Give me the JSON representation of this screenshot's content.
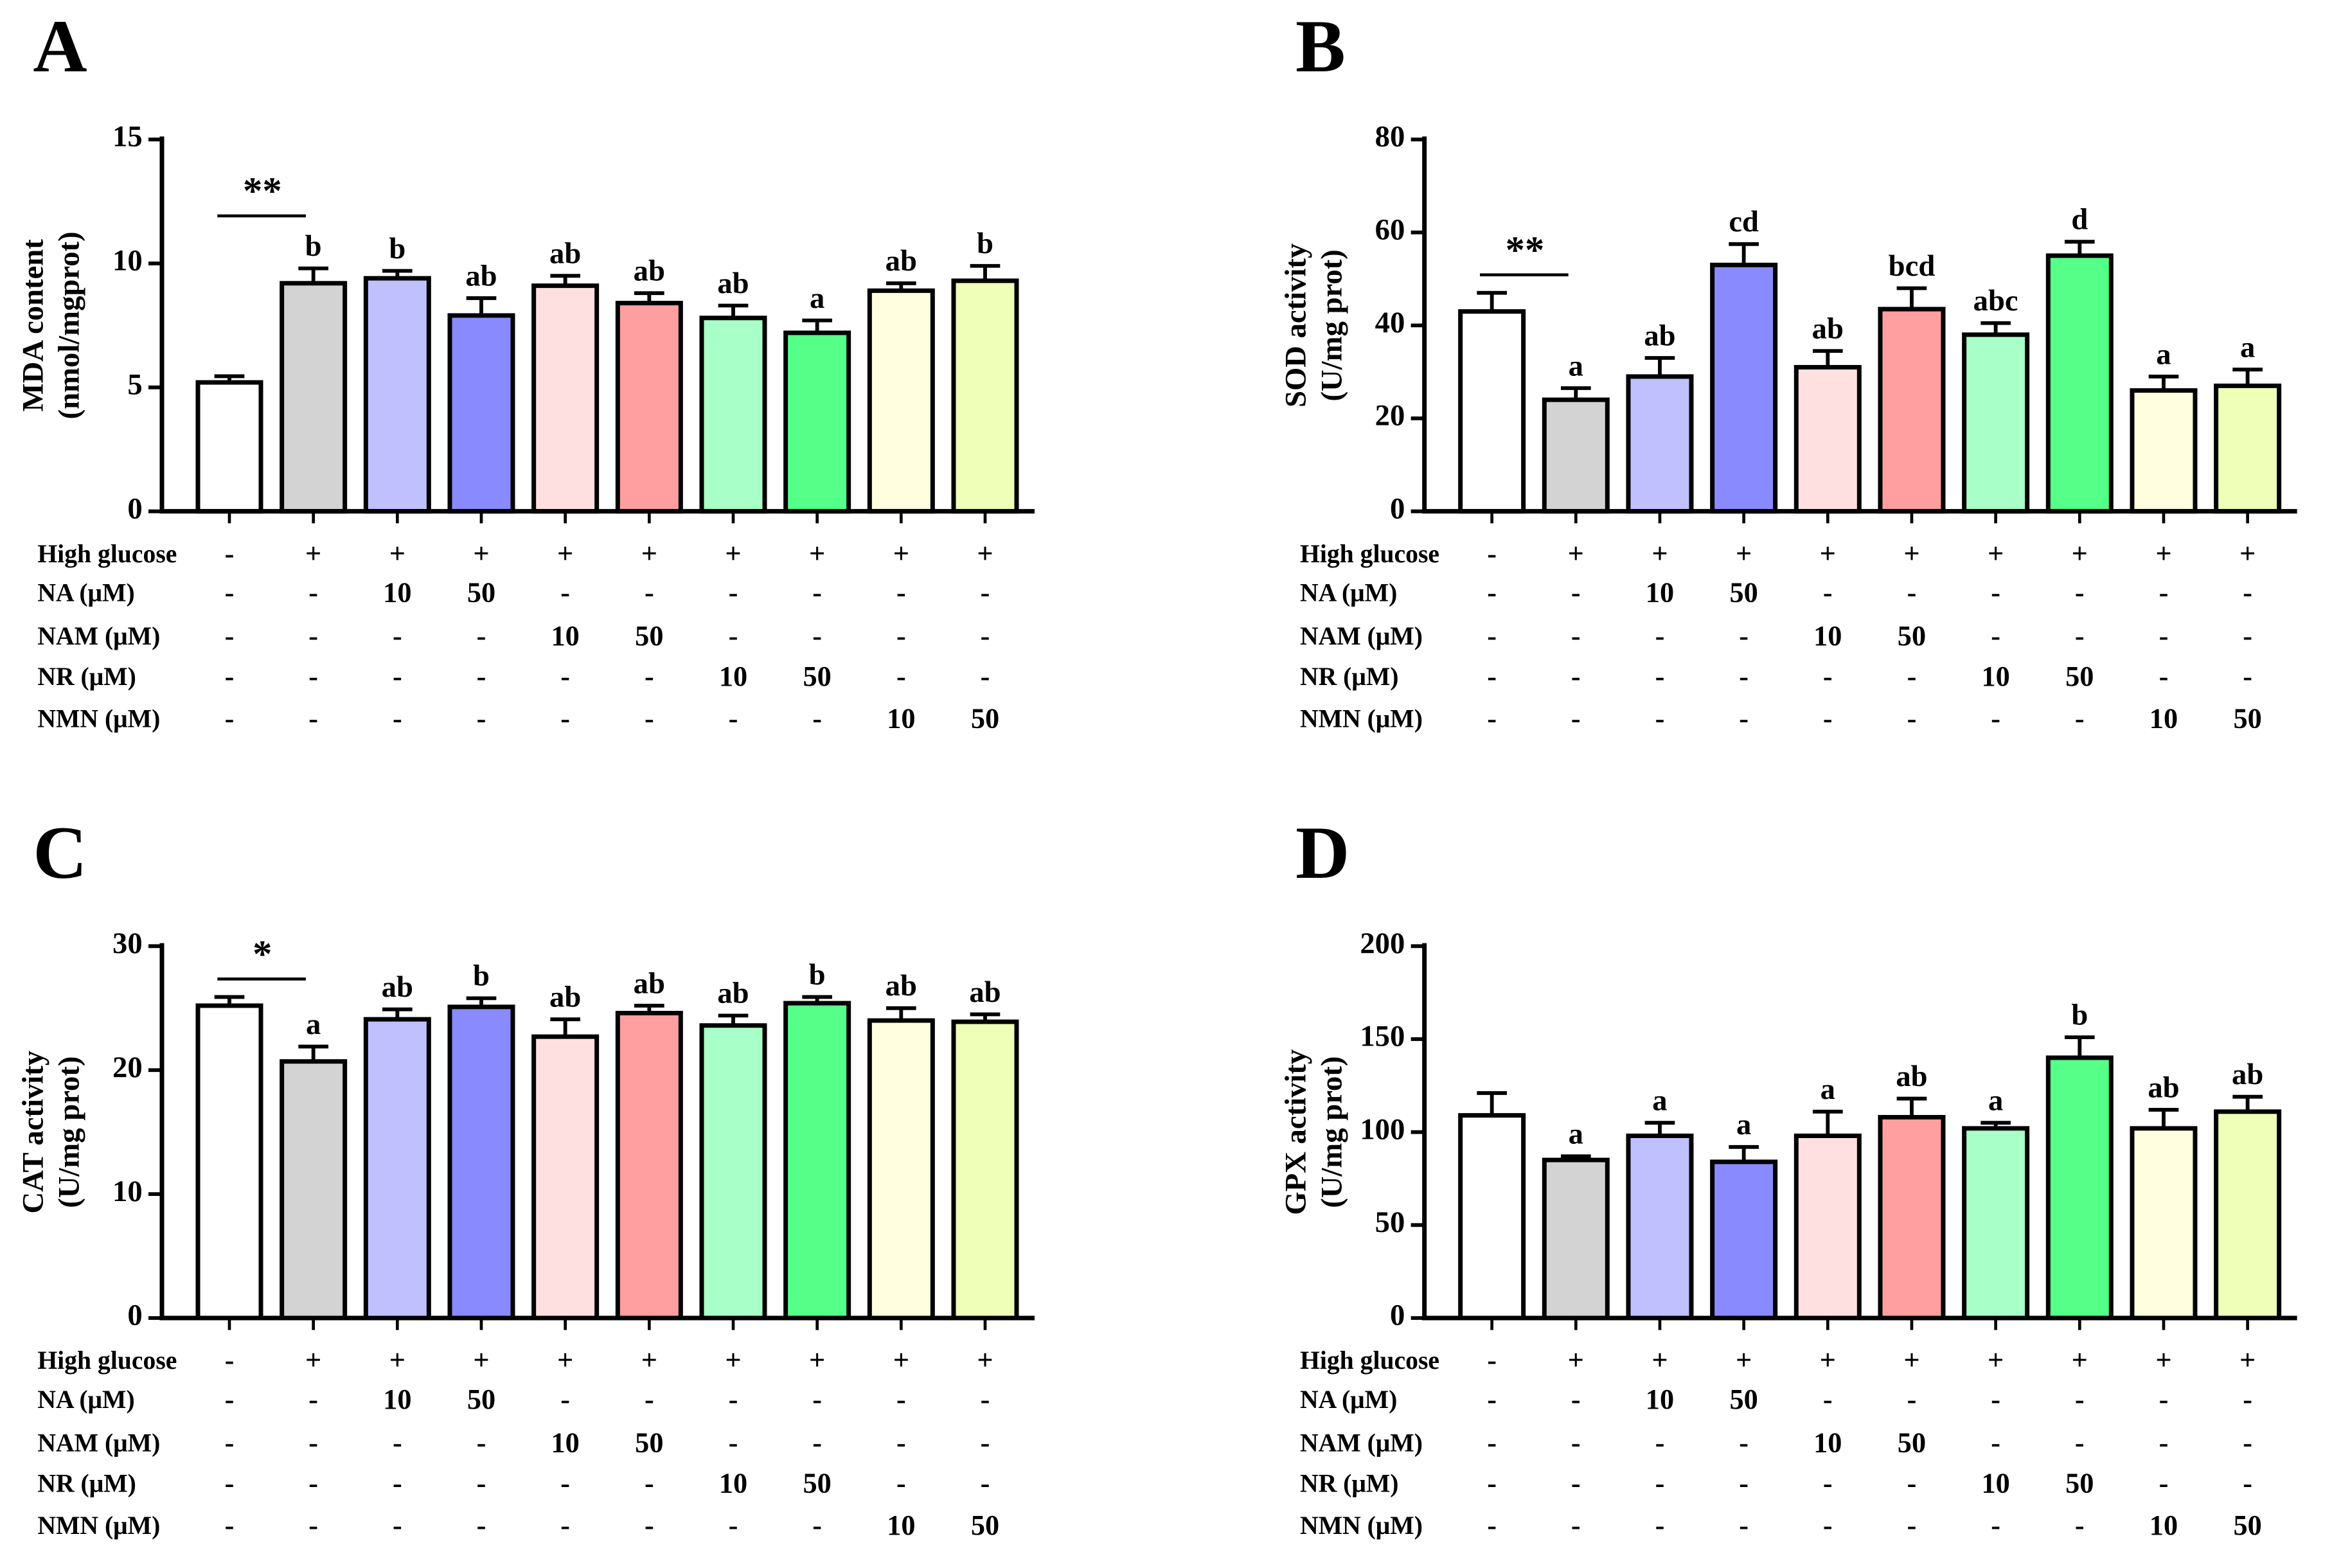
{
  "chart_data": [
    {
      "type": "bar",
      "panel": "A",
      "ylabel": [
        "MDA content",
        "(nmol/mgprot)"
      ],
      "ylim": [
        0,
        15
      ],
      "yticks": [
        0,
        5,
        10,
        15
      ],
      "values": [
        5.2,
        9.2,
        9.4,
        7.9,
        9.1,
        8.4,
        7.8,
        7.2,
        8.9,
        9.3
      ],
      "errors": [
        0.25,
        0.6,
        0.3,
        0.7,
        0.4,
        0.4,
        0.5,
        0.5,
        0.3,
        0.6
      ],
      "letters": [
        null,
        "b",
        "b",
        "ab",
        "ab",
        "ab",
        "ab",
        "a",
        "ab",
        "b"
      ],
      "significance": "**"
    },
    {
      "type": "bar",
      "panel": "B",
      "ylabel": [
        "SOD activity",
        "(U/mg prot)"
      ],
      "ylim": [
        0,
        80
      ],
      "yticks": [
        0,
        20,
        40,
        60,
        80
      ],
      "values": [
        43,
        24,
        29,
        53,
        31,
        43.5,
        38,
        55,
        26,
        27
      ],
      "errors": [
        4,
        2.5,
        4,
        4.5,
        3.5,
        4.5,
        2.5,
        3,
        3,
        3.5
      ],
      "letters": [
        null,
        "a",
        "ab",
        "cd",
        "ab",
        "bcd",
        "abc",
        "d",
        "a",
        "a"
      ],
      "significance": "**"
    },
    {
      "type": "bar",
      "panel": "C",
      "ylabel": [
        "CAT activity",
        "(U/mg prot)"
      ],
      "ylim": [
        0,
        30
      ],
      "yticks": [
        0,
        10,
        20,
        30
      ],
      "values": [
        25.2,
        20.7,
        24.1,
        25.1,
        22.7,
        24.6,
        23.6,
        25.4,
        24,
        23.9
      ],
      "errors": [
        0.7,
        1.2,
        0.8,
        0.7,
        1.4,
        0.6,
        0.8,
        0.5,
        1,
        0.6
      ],
      "letters": [
        null,
        "a",
        "ab",
        "b",
        "ab",
        "ab",
        "ab",
        "b",
        "ab",
        "ab"
      ],
      "significance": "*"
    },
    {
      "type": "bar",
      "panel": "D",
      "ylabel": [
        "GPX activity",
        "(U/mg prot)"
      ],
      "ylim": [
        0,
        200
      ],
      "yticks": [
        0,
        50,
        100,
        150,
        200
      ],
      "values": [
        109,
        85,
        98,
        84,
        98,
        108,
        102,
        140,
        102,
        111
      ],
      "errors": [
        12,
        2,
        7,
        8,
        13,
        10,
        3,
        11,
        10,
        8
      ],
      "letters": [
        null,
        "a",
        "a",
        "a",
        "a",
        "ab",
        "a",
        "b",
        "ab",
        "ab"
      ]
    }
  ],
  "colors": [
    "#ffffff",
    "#d3d3d3",
    "#c0c0ff",
    "#8a8aff",
    "#ffe0e0",
    "#ff9f9f",
    "#a8ffc8",
    "#55ff88",
    "#ffffe0",
    "#f0ffb8"
  ],
  "treatment_table": [
    {
      "label": "High glucose",
      "cells": [
        "-",
        "+",
        "+",
        "+",
        "+",
        "+",
        "+",
        "+",
        "+",
        "+"
      ]
    },
    {
      "label": "NA (μM)",
      "cells": [
        "-",
        "-",
        "10",
        "50",
        "-",
        "-",
        "-",
        "-",
        "-",
        "-"
      ]
    },
    {
      "label": "NAM (μM)",
      "cells": [
        "-",
        "-",
        "-",
        "-",
        "10",
        "50",
        "-",
        "-",
        "-",
        "-"
      ]
    },
    {
      "label": "NR (μM)",
      "cells": [
        "-",
        "-",
        "-",
        "-",
        "-",
        "-",
        "10",
        "50",
        "-",
        "-"
      ]
    },
    {
      "label": "NMN (μM)",
      "cells": [
        "-",
        "-",
        "-",
        "-",
        "-",
        "-",
        "-",
        "-",
        "10",
        "50"
      ]
    }
  ]
}
